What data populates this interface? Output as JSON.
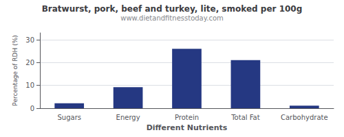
{
  "chart_data": {
    "type": "bar",
    "title": "Bratwurst, pork, beef and turkey, lite, smoked per 100g",
    "subtitle": "www.dietandfitnesstoday.com",
    "xlabel": "Different Nutrients",
    "ylabel": "Percentage of RDH (%)",
    "categories": [
      "Sugars",
      "Energy",
      "Protein",
      "Total Fat",
      "Carbohydrate"
    ],
    "values": [
      2.2,
      9.2,
      26.0,
      21.1,
      1.1
    ],
    "color": "#253882",
    "ylim": [
      0,
      33
    ],
    "yticks": [
      0,
      10,
      20,
      30
    ],
    "grid": true
  }
}
